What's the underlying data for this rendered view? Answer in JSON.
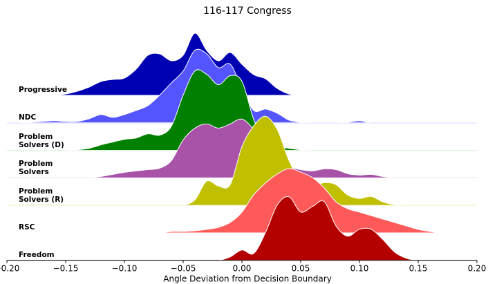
{
  "chart_data": {
    "type": "ridgeline",
    "title": "116-117 Congress",
    "xlabel": "Angle Deviation from Decision Boundary",
    "xlim": [
      -0.2,
      0.2
    ],
    "xticks": [
      {
        "value": -0.2,
        "label": "−0.20"
      },
      {
        "value": -0.15,
        "label": "−0.15"
      },
      {
        "value": -0.1,
        "label": "−0.10"
      },
      {
        "value": -0.05,
        "label": "−0.05"
      },
      {
        "value": 0,
        "label": "0.00"
      },
      {
        "value": 0.05,
        "label": "0.05"
      },
      {
        "value": 0.1,
        "label": "0.10"
      },
      {
        "value": 0.15,
        "label": "0.15"
      },
      {
        "value": 0.2,
        "label": "0.20"
      }
    ],
    "x": [
      -0.2,
      -0.19,
      -0.18,
      -0.17,
      -0.16,
      -0.15,
      -0.14,
      -0.13,
      -0.12,
      -0.11,
      -0.1,
      -0.09,
      -0.08,
      -0.07,
      -0.06,
      -0.05,
      -0.04,
      -0.03,
      -0.02,
      -0.01,
      0,
      0.01,
      0.02,
      0.03,
      0.04,
      0.05,
      0.06,
      0.07,
      0.08,
      0.09,
      0.1,
      0.11,
      0.12,
      0.13,
      0.14,
      0.15,
      0.16,
      0.17,
      0.18,
      0.19,
      0.2
    ],
    "series": [
      {
        "name": "Progressive",
        "color": "#0000b3",
        "values": [
          0,
          0,
          0,
          0,
          0,
          2,
          6,
          12,
          20,
          23,
          25,
          38,
          58,
          60,
          50,
          58,
          90,
          65,
          50,
          62,
          45,
          30,
          24,
          10,
          2,
          0,
          0,
          0,
          0,
          0,
          0,
          0,
          0,
          0,
          0,
          0,
          0,
          0,
          0,
          0,
          0
        ]
      },
      {
        "name": "NDC",
        "color": "#5555ff",
        "values": [
          0,
          0,
          1,
          2,
          3,
          2,
          2,
          6,
          12,
          8,
          12,
          18,
          25,
          40,
          58,
          75,
          105,
          100,
          80,
          85,
          50,
          18,
          20,
          14,
          4,
          1,
          0,
          0,
          0,
          1,
          3,
          0,
          0,
          0,
          0,
          0,
          0,
          0,
          0,
          0,
          0
        ]
      },
      {
        "name": "Problem Solvers (D)",
        "color": "#008000",
        "values": [
          0,
          0,
          0,
          0,
          0,
          0,
          1,
          3,
          8,
          12,
          16,
          18,
          24,
          22,
          35,
          80,
          115,
          110,
          95,
          108,
          100,
          45,
          10,
          6,
          3,
          1,
          0,
          0,
          0,
          0,
          0,
          0,
          0,
          0,
          0,
          0,
          0,
          0,
          0,
          0,
          0
        ]
      },
      {
        "name": "Problem Solvers",
        "color": "#a852a8",
        "values": [
          0,
          0,
          0,
          0,
          0,
          0,
          0,
          0,
          2,
          5,
          8,
          10,
          12,
          14,
          25,
          55,
          72,
          78,
          72,
          78,
          85,
          70,
          45,
          25,
          16,
          12,
          10,
          13,
          12,
          6,
          4,
          5,
          2,
          0,
          0,
          0,
          0,
          0,
          0,
          0,
          0
        ]
      },
      {
        "name": "Problem Solvers (R)",
        "color": "#c0c000",
        "values": [
          0,
          0,
          0,
          0,
          0,
          0,
          0,
          0,
          0,
          0,
          0,
          0,
          0,
          0,
          0,
          0,
          8,
          35,
          28,
          30,
          85,
          115,
          129,
          110,
          65,
          35,
          28,
          33,
          30,
          15,
          10,
          13,
          5,
          1,
          0,
          0,
          0,
          0,
          0,
          0,
          0
        ]
      },
      {
        "name": "RSC",
        "color": "#ff5a5a",
        "values": [
          0,
          0,
          0,
          0,
          0,
          0,
          0,
          0,
          0,
          0,
          0,
          0,
          0,
          0,
          2,
          2,
          3,
          5,
          8,
          15,
          30,
          55,
          72,
          85,
          93,
          88,
          80,
          65,
          45,
          35,
          30,
          25,
          20,
          15,
          10,
          5,
          2,
          0,
          0,
          0,
          0
        ]
      },
      {
        "name": "Freedom",
        "color": "#b50000",
        "values": [
          0,
          0,
          0,
          0,
          0,
          0,
          0,
          0,
          0,
          0,
          0,
          0,
          0,
          0,
          0,
          0,
          0,
          0,
          0,
          5,
          15,
          10,
          40,
          80,
          92,
          70,
          78,
          85,
          50,
          35,
          45,
          45,
          30,
          12,
          3,
          0,
          0,
          0,
          0,
          0,
          0
        ]
      }
    ]
  }
}
